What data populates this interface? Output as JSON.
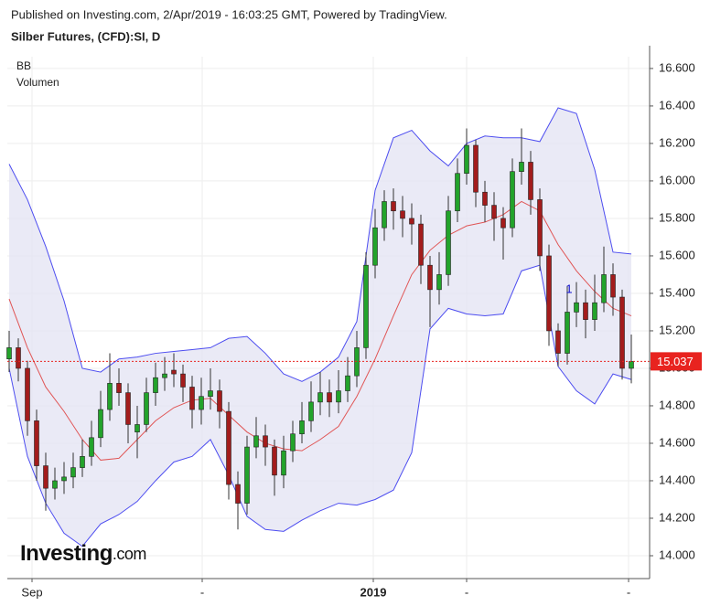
{
  "chart_data": {
    "type": "candlestick",
    "published": "Published on Investing.com, 2/Apr/2019 - 16:03:25 GMT, Powered by TradingView.",
    "title": "Silber Futures, (CFD):SI, D",
    "indicators": [
      "BB",
      "Volumen"
    ],
    "logo": [
      "Investing",
      ".com"
    ],
    "up_color": "#23a32b",
    "down_color": "#a31c1c",
    "band_color": "#4d4df0",
    "band_fill": "#e3e3f3",
    "middle_color": "#e05555",
    "price_color": "#e8231f",
    "grid": true,
    "ylim": [
      13.878,
      16.663
    ],
    "yticks": [
      {
        "value": 14.0,
        "label": "14.000"
      },
      {
        "value": 14.2,
        "label": "14.200"
      },
      {
        "value": 14.4,
        "label": "14.400"
      },
      {
        "value": 14.6,
        "label": "14.600"
      },
      {
        "value": 14.8,
        "label": "14.800"
      },
      {
        "value": 15.0,
        "label": "15.000"
      },
      {
        "value": 15.2,
        "label": "15.200"
      },
      {
        "value": 15.4,
        "label": "15.400"
      },
      {
        "value": 15.6,
        "label": "15.600"
      },
      {
        "value": 15.8,
        "label": "15.800"
      },
      {
        "value": 16.0,
        "label": "16.000"
      },
      {
        "value": 16.2,
        "label": "16.200"
      },
      {
        "value": 16.4,
        "label": "16.400"
      },
      {
        "value": 16.6,
        "label": "16.600"
      }
    ],
    "xlim": [
      -0.2,
      70
    ],
    "xticks": [
      {
        "value": 2.5,
        "label": "Sep"
      },
      {
        "value": 21.1,
        "label": "-"
      },
      {
        "value": 39.8,
        "label": "2019"
      },
      {
        "value": 50,
        "label": "-"
      },
      {
        "value": 67.7,
        "label": "-"
      }
    ],
    "open": [
      15.05,
      15.11,
      15.0,
      14.72,
      14.48,
      14.36,
      14.4,
      14.42,
      14.47,
      14.53,
      14.63,
      14.78,
      14.92,
      14.87,
      14.66,
      14.7,
      14.87,
      14.95,
      14.99,
      14.97,
      14.9,
      14.78,
      14.85,
      14.88,
      14.77,
      14.38,
      14.28,
      14.58,
      14.64,
      14.58,
      14.43,
      14.56,
      14.65,
      14.72,
      14.82,
      14.87,
      14.82,
      14.88,
      14.96,
      15.11,
      15.55,
      15.75,
      15.89,
      15.84,
      15.8,
      15.77,
      15.55,
      15.42,
      15.5,
      15.84,
      16.04,
      16.19,
      15.94,
      15.87,
      15.8,
      15.75,
      16.05,
      16.1,
      15.9,
      15.6,
      15.2,
      15.08,
      15.3,
      15.35,
      15.26,
      15.35,
      15.5,
      15.38,
      15.0
    ],
    "high": [
      15.2,
      15.16,
      15.04,
      14.78,
      14.55,
      14.47,
      14.5,
      14.55,
      14.62,
      14.72,
      14.88,
      15.08,
      15.0,
      14.92,
      14.8,
      14.95,
      15.03,
      15.06,
      15.08,
      15.02,
      14.96,
      14.95,
      15.0,
      14.94,
      14.82,
      14.45,
      14.64,
      14.74,
      14.7,
      14.62,
      14.64,
      14.72,
      14.82,
      14.93,
      14.98,
      14.94,
      14.99,
      15.06,
      15.2,
      15.62,
      15.85,
      15.95,
      15.96,
      15.92,
      15.88,
      15.82,
      15.6,
      15.62,
      15.92,
      16.12,
      16.28,
      16.22,
      16.0,
      15.94,
      15.86,
      16.12,
      16.28,
      16.16,
      15.96,
      15.66,
      15.24,
      15.44,
      15.46,
      15.42,
      15.5,
      15.65,
      15.56,
      15.42,
      15.18
    ],
    "low": [
      14.98,
      14.93,
      14.64,
      14.4,
      14.24,
      14.3,
      14.33,
      14.36,
      14.42,
      14.48,
      14.58,
      14.72,
      14.8,
      14.6,
      14.52,
      14.66,
      14.8,
      14.88,
      14.9,
      14.82,
      14.68,
      14.7,
      14.78,
      14.68,
      14.3,
      14.14,
      14.22,
      14.52,
      14.48,
      14.32,
      14.36,
      14.5,
      14.6,
      14.66,
      14.75,
      14.74,
      14.76,
      14.82,
      14.9,
      15.05,
      15.48,
      15.68,
      15.74,
      15.7,
      15.66,
      15.45,
      15.22,
      15.34,
      15.44,
      15.78,
      15.98,
      15.86,
      15.78,
      15.68,
      15.58,
      15.7,
      15.98,
      15.82,
      15.52,
      15.12,
      15.01,
      15.02,
      15.22,
      15.16,
      15.2,
      15.3,
      15.28,
      14.94,
      14.92
    ],
    "close": [
      15.11,
      15.0,
      14.72,
      14.48,
      14.36,
      14.4,
      14.42,
      14.47,
      14.53,
      14.63,
      14.78,
      14.92,
      14.87,
      14.7,
      14.7,
      14.87,
      14.95,
      14.97,
      14.97,
      14.9,
      14.78,
      14.85,
      14.88,
      14.77,
      14.38,
      14.28,
      14.58,
      14.64,
      14.58,
      14.43,
      14.56,
      14.65,
      14.72,
      14.82,
      14.87,
      14.82,
      14.88,
      14.96,
      15.11,
      15.55,
      15.75,
      15.89,
      15.84,
      15.8,
      15.77,
      15.55,
      15.42,
      15.5,
      15.84,
      16.04,
      16.19,
      15.94,
      15.87,
      15.8,
      15.75,
      16.05,
      16.1,
      15.9,
      15.6,
      15.2,
      15.08,
      15.3,
      15.35,
      15.26,
      15.35,
      15.5,
      15.38,
      15.0,
      15.037
    ],
    "bollinger": {
      "x": [
        0,
        2,
        4,
        6,
        8,
        10,
        12,
        14,
        16,
        18,
        20,
        22,
        24,
        26,
        28,
        30,
        32,
        34,
        36,
        38,
        40,
        42,
        44,
        46,
        48,
        50,
        52,
        54,
        56,
        58,
        60,
        62,
        64,
        66,
        68
      ],
      "upper": [
        16.09,
        15.9,
        15.65,
        15.36,
        15.0,
        14.98,
        15.05,
        15.06,
        15.08,
        15.09,
        15.1,
        15.11,
        15.16,
        15.17,
        15.08,
        14.97,
        14.93,
        14.98,
        15.06,
        15.25,
        15.95,
        16.23,
        16.27,
        16.16,
        16.08,
        16.2,
        16.24,
        16.23,
        16.23,
        16.21,
        16.39,
        16.36,
        16.06,
        15.62,
        15.61
      ],
      "middle": [
        15.37,
        15.11,
        14.9,
        14.77,
        14.62,
        14.51,
        14.52,
        14.62,
        14.72,
        14.79,
        14.83,
        14.84,
        14.75,
        14.66,
        14.6,
        14.57,
        14.56,
        14.62,
        14.69,
        14.85,
        15.05,
        15.28,
        15.5,
        15.63,
        15.71,
        15.76,
        15.78,
        15.82,
        15.89,
        15.84,
        15.66,
        15.52,
        15.41,
        15.32,
        15.28
      ],
      "lower": [
        15.0,
        14.53,
        14.28,
        14.12,
        14.05,
        14.17,
        14.22,
        14.29,
        14.4,
        14.5,
        14.53,
        14.62,
        14.43,
        14.21,
        14.14,
        14.13,
        14.19,
        14.24,
        14.28,
        14.27,
        14.3,
        14.35,
        14.55,
        15.21,
        15.32,
        15.29,
        15.28,
        15.29,
        15.52,
        15.55,
        15.01,
        14.88,
        14.81,
        14.97,
        14.94
      ]
    },
    "last_price": 15.037,
    "annotation": {
      "text": "1",
      "x": 61.2,
      "y": 15.42,
      "color": "#1010d0"
    }
  }
}
